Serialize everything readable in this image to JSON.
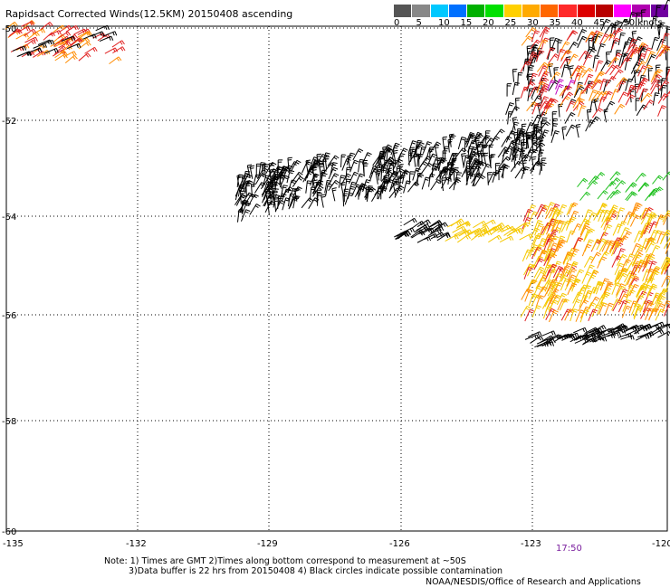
{
  "title": "Rapidsact Corrected Winds(12.5KM) 20150408 ascending",
  "legend": {
    "colors": [
      "#555555",
      "#888888",
      "#00c8ff",
      "#0070ff",
      "#00b000",
      "#00e000",
      "#ffd000",
      "#ffaa00",
      "#ff6600",
      "#ff2a2a",
      "#dd0000",
      "#b80000",
      "#ff00ff",
      "#b000b0",
      "#7000a0"
    ],
    "labels": [
      "0",
      "5",
      "10",
      "15",
      "20",
      "25",
      "30",
      "35",
      "40",
      "45",
      ">50 knots"
    ]
  },
  "map": {
    "lat_labels": [
      "-50",
      "-52",
      "-54",
      "-56",
      "-58",
      "-60"
    ],
    "lon_labels": [
      "-135",
      "-132",
      "-129",
      "-126",
      "-123",
      "-120"
    ],
    "time_label": "17:50",
    "wind_colors": {
      "black": "#000000",
      "yellow": "#f5c800",
      "orange": "#ff8c00",
      "red": "#e02020",
      "green": "#20c020",
      "magenta": "#c000c0"
    }
  },
  "notes": {
    "line1": "Note: 1) Times are GMT 2)Times along bottom correspond to measurement at ~50S",
    "line2": "3)Data buffer is 22 hrs from 20150408 4) Black circles indicate possible contamination"
  },
  "credit": "NOAA/NESDIS/Office of Research and Applications"
}
